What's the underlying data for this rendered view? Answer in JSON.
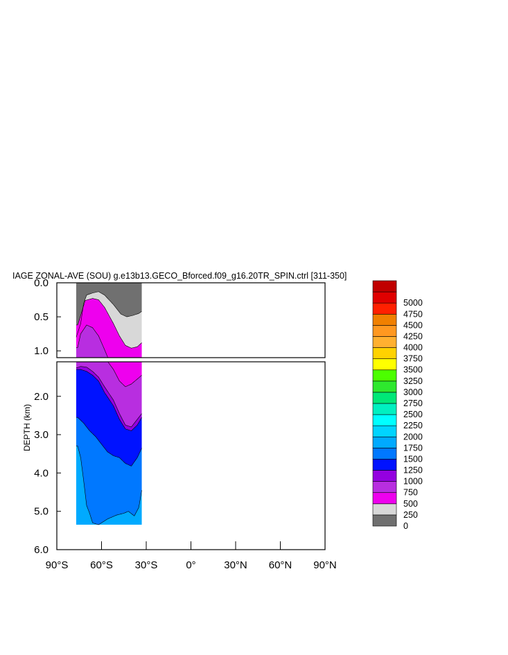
{
  "chart_data": {
    "type": "heatmap",
    "title": "IAGE ZONAL-AVE (SOU) g.e13b13.GECO_Bforced.f09_g16.20TR_SPIN.ctrl [311-350]",
    "ylabel": "DEPTH (km)",
    "xlabel": "",
    "x_ticks": [
      "90°S",
      "60°S",
      "30°S",
      "0°",
      "30°N",
      "60°N",
      "90°N"
    ],
    "x_tick_values": [
      -90,
      -60,
      -30,
      0,
      30,
      60,
      90
    ],
    "xlim": [
      -90,
      90
    ],
    "y_ticks_upper": [
      "0.0",
      "0.5",
      "1.0"
    ],
    "y_tick_values_upper": [
      0.0,
      0.5,
      1.0
    ],
    "ylim_upper": [
      0.0,
      1.1
    ],
    "y_ticks_lower": [
      "2.0",
      "3.0",
      "4.0",
      "5.0",
      "6.0"
    ],
    "y_tick_values_lower": [
      2.0,
      3.0,
      4.0,
      5.0,
      6.0
    ],
    "ylim_lower": [
      1.1,
      6.0
    ],
    "colorbar": {
      "levels": [
        "0",
        "250",
        "500",
        "750",
        "1000",
        "1250",
        "1500",
        "1750",
        "2000",
        "2250",
        "2500",
        "2750",
        "3000",
        "3250",
        "3500",
        "3750",
        "4000",
        "4250",
        "4500",
        "4750",
        "5000"
      ],
      "colors": [
        "#707070",
        "#d8d8d8",
        "#ee00ee",
        "#b82ee0",
        "#9400e0",
        "#0012ff",
        "#0078ff",
        "#00aaff",
        "#00d4ff",
        "#00ffff",
        "#00f0c0",
        "#00e878",
        "#2ee82e",
        "#4cff00",
        "#ffff00",
        "#ffd200",
        "#ffb030",
        "#ff9820",
        "#f08000",
        "#ff2000",
        "#e00000",
        "#c00000"
      ]
    },
    "contours": [
      {
        "level": "0",
        "depth_by_lat": [
          [
            -77,
            0.8
          ],
          [
            -74,
            0.6
          ],
          [
            -72,
            0.3
          ],
          [
            -70,
            0.18
          ],
          [
            -66,
            0.15
          ],
          [
            -62,
            0.13
          ],
          [
            -58,
            0.18
          ],
          [
            -52,
            0.32
          ],
          [
            -47,
            0.46
          ],
          [
            -43,
            0.5
          ],
          [
            -39,
            0.48
          ],
          [
            -35,
            0.45
          ],
          [
            -33,
            0.42
          ]
        ]
      },
      {
        "level": "250",
        "depth_by_lat": [
          [
            -76,
            0.62
          ],
          [
            -74,
            0.48
          ],
          [
            -71,
            0.26
          ],
          [
            -66,
            0.23
          ],
          [
            -62,
            0.25
          ],
          [
            -58,
            0.36
          ],
          [
            -52,
            0.6
          ],
          [
            -48,
            0.78
          ],
          [
            -44,
            0.92
          ],
          [
            -40,
            0.96
          ],
          [
            -36,
            0.94
          ],
          [
            -33,
            0.88
          ]
        ]
      },
      {
        "level": "500",
        "depth_by_lat": [
          [
            -76,
            0.95
          ],
          [
            -74,
            0.75
          ],
          [
            -70,
            0.62
          ],
          [
            -66,
            0.66
          ],
          [
            -62,
            0.78
          ],
          [
            -58,
            0.98
          ],
          [
            -52,
            1.3
          ],
          [
            -48,
            1.6
          ],
          [
            -44,
            1.75
          ],
          [
            -40,
            1.68
          ],
          [
            -36,
            1.55
          ],
          [
            -33,
            1.45
          ]
        ]
      },
      {
        "level": "750",
        "depth_by_lat": [
          [
            -76,
            1.25
          ],
          [
            -74,
            1.22
          ],
          [
            -70,
            1.24
          ],
          [
            -66,
            1.35
          ],
          [
            -62,
            1.5
          ],
          [
            -58,
            1.75
          ],
          [
            -52,
            2.1
          ],
          [
            -48,
            2.45
          ],
          [
            -44,
            2.75
          ],
          [
            -40,
            2.8
          ],
          [
            -36,
            2.6
          ],
          [
            -33,
            2.45
          ]
        ]
      },
      {
        "level": "1000",
        "depth_by_lat": [
          [
            -76,
            1.3
          ],
          [
            -74,
            1.3
          ],
          [
            -70,
            1.35
          ],
          [
            -66,
            1.45
          ],
          [
            -62,
            1.6
          ],
          [
            -58,
            1.9
          ],
          [
            -52,
            2.25
          ],
          [
            -48,
            2.6
          ],
          [
            -44,
            2.85
          ],
          [
            -40,
            2.9
          ],
          [
            -36,
            2.75
          ],
          [
            -33,
            2.55
          ]
        ]
      },
      {
        "level": "1250",
        "depth_by_lat": [
          [
            -76,
            2.55
          ],
          [
            -72,
            2.7
          ],
          [
            -68,
            2.9
          ],
          [
            -64,
            3.05
          ],
          [
            -60,
            3.25
          ],
          [
            -56,
            3.45
          ],
          [
            -52,
            3.55
          ],
          [
            -48,
            3.6
          ],
          [
            -44,
            3.75
          ],
          [
            -40,
            3.82
          ],
          [
            -36,
            3.6
          ],
          [
            -33,
            3.35
          ]
        ]
      },
      {
        "level": "1500",
        "depth_by_lat": [
          [
            -76,
            3.3
          ],
          [
            -74,
            3.6
          ],
          [
            -72,
            4.2
          ],
          [
            -70,
            4.85
          ],
          [
            -68,
            5.05
          ],
          [
            -66,
            5.3
          ],
          [
            -62,
            5.35
          ],
          [
            -56,
            5.2
          ],
          [
            -50,
            5.1
          ],
          [
            -45,
            5.05
          ],
          [
            -42,
            5.0
          ],
          [
            -38,
            5.12
          ],
          [
            -35,
            4.9
          ],
          [
            -33,
            4.45
          ]
        ]
      }
    ],
    "data_extent_lat": [
      -77,
      -33
    ],
    "data_extent_depth": [
      0.0,
      5.35
    ]
  }
}
